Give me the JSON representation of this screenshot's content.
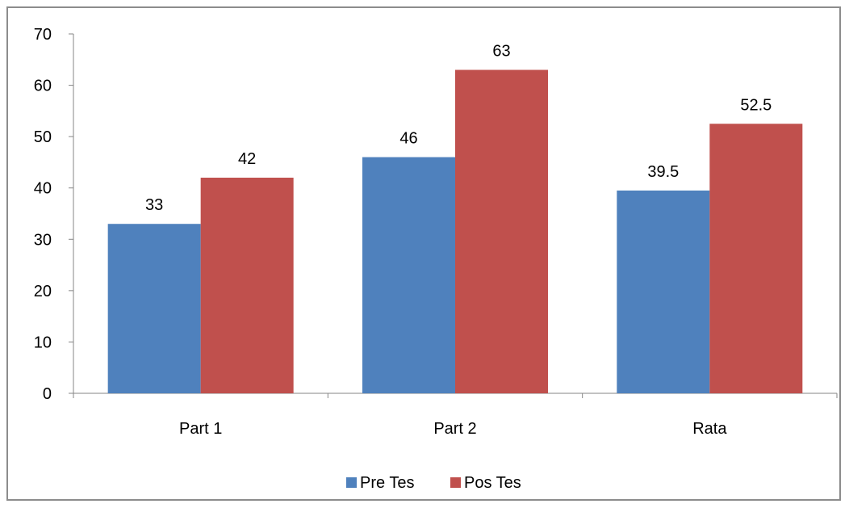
{
  "chart_data": {
    "type": "bar",
    "categories": [
      "Part 1",
      "Part 2",
      "Rata"
    ],
    "series": [
      {
        "name": "Pre Tes",
        "values": [
          33,
          46,
          39.5
        ],
        "color": "#4f81bd"
      },
      {
        "name": "Pos Tes",
        "values": [
          42,
          63,
          52.5
        ],
        "color": "#c0504d"
      }
    ],
    "data_labels": [
      [
        "33",
        "46",
        "39.5"
      ],
      [
        "42",
        "63",
        "52.5"
      ]
    ],
    "y_ticks": [
      0,
      10,
      20,
      30,
      40,
      50,
      60,
      70
    ],
    "ylim": [
      0,
      70
    ],
    "grid": false,
    "legend_position": "bottom",
    "title": "",
    "xlabel": "",
    "ylabel": ""
  }
}
